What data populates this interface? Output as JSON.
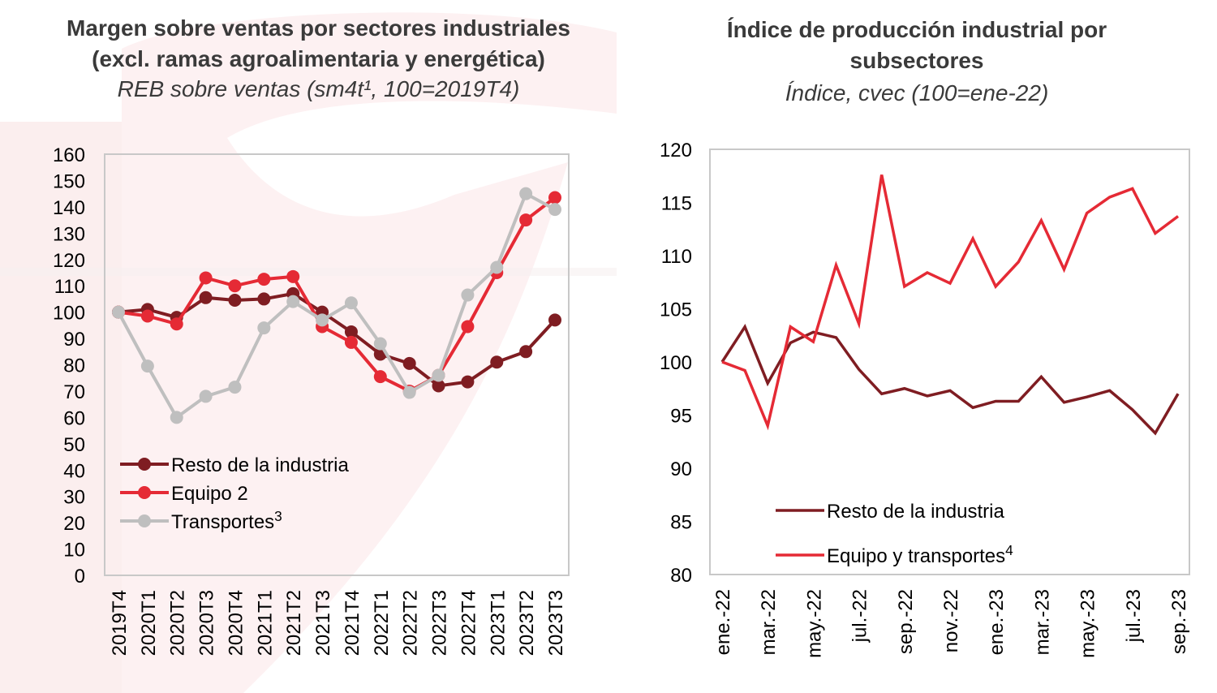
{
  "colors": {
    "resto": "#7f1d22",
    "equipo": "#e52a35",
    "transportes": "#bfbfbf",
    "axis_text": "#000000",
    "frame": "#c8c8c8",
    "title": "#3a3a3a"
  },
  "chart_data": [
    {
      "type": "line",
      "title": "Margen sobre ventas por sectores industriales",
      "title_line2": "(excl. ramas agroalimentaria y energética)",
      "subtitle": "REB sobre ventas (sm4t¹, 100=2019T4)",
      "xlabel": "",
      "ylabel": "",
      "ylim": [
        0,
        160
      ],
      "yticks": [
        0,
        10,
        20,
        30,
        40,
        50,
        60,
        70,
        80,
        90,
        100,
        110,
        120,
        130,
        140,
        150,
        160
      ],
      "grid": false,
      "markers": true,
      "legend_position": "bottom-left",
      "categories": [
        "2019T4",
        "2020T1",
        "2020T2",
        "2020T3",
        "2020T4",
        "2021T1",
        "2021T2",
        "2021T3",
        "2021T4",
        "2022T1",
        "2022T2",
        "2022T3",
        "2022T4",
        "2023T1",
        "2023T2",
        "2023T3"
      ],
      "series": [
        {
          "name": "Resto de la industria",
          "legend_label": "Resto de la industria",
          "legend_sup": "",
          "color_key": "resto",
          "values": [
            100,
            101,
            98,
            105.5,
            104.5,
            105,
            107,
            100,
            92.5,
            84,
            80.5,
            72,
            73.5,
            81,
            85,
            97
          ]
        },
        {
          "name": "Equipo 2",
          "legend_label": "Equipo 2",
          "legend_sup": "",
          "color_key": "equipo",
          "values": [
            100,
            98.5,
            95.5,
            113,
            110,
            112.5,
            113.5,
            94.5,
            88.5,
            75.5,
            70,
            76,
            94.5,
            115,
            135,
            143.5
          ]
        },
        {
          "name": "Transportes3",
          "legend_label": "Transportes",
          "legend_sup": "3",
          "color_key": "transportes",
          "values": [
            100,
            79.5,
            60,
            68,
            71.5,
            94,
            104,
            97,
            103.5,
            88,
            69.5,
            76,
            106.5,
            117,
            145,
            139
          ]
        }
      ]
    },
    {
      "type": "line",
      "title": "Índice de producción industrial por",
      "title_line2": "subsectores",
      "subtitle": "Índice, cvec (100=ene-22)",
      "xlabel": "",
      "ylabel": "",
      "ylim": [
        80,
        120
      ],
      "yticks": [
        80,
        85,
        90,
        95,
        100,
        105,
        110,
        115,
        120
      ],
      "grid": false,
      "markers": false,
      "legend_position": "bottom-left",
      "x": [
        "ene.-22",
        "feb.-22",
        "mar.-22",
        "abr.-22",
        "may.-22",
        "jun.-22",
        "jul.-22",
        "ago.-22",
        "sep.-22",
        "oct.-22",
        "nov.-22",
        "dic.-22",
        "ene.-23",
        "feb.-23",
        "mar.-23",
        "abr.-23",
        "may.-23",
        "jun.-23",
        "jul.-23",
        "ago.-23",
        "sep.-23"
      ],
      "tick_labels": [
        "ene.-22",
        "mar.-22",
        "may.-22",
        "jul.-22",
        "sep.-22",
        "nov.-22",
        "ene.-23",
        "mar.-23",
        "may.-23",
        "jul.-23",
        "sep.-23"
      ],
      "series": [
        {
          "name": "Resto de la industria",
          "legend_label": "Resto de la industria",
          "legend_sup": "",
          "color_key": "resto",
          "values": [
            100,
            103.3,
            98,
            101.8,
            102.8,
            102.3,
            99.3,
            97,
            97.5,
            96.8,
            97.3,
            95.7,
            96.3,
            96.3,
            98.6,
            96.2,
            96.7,
            97.3,
            95.5,
            93.3,
            97
          ]
        },
        {
          "name": "Equipo y transportes4",
          "legend_label": "Equipo y transportes",
          "legend_sup": "4",
          "color_key": "equipo",
          "values": [
            100,
            99.2,
            94,
            103.3,
            101.9,
            109.1,
            103.6,
            117.6,
            107.1,
            108.4,
            107.4,
            111.6,
            107.1,
            109.4,
            113.3,
            108.7,
            114,
            115.5,
            116.3,
            112.1,
            113.7
          ]
        }
      ]
    }
  ]
}
